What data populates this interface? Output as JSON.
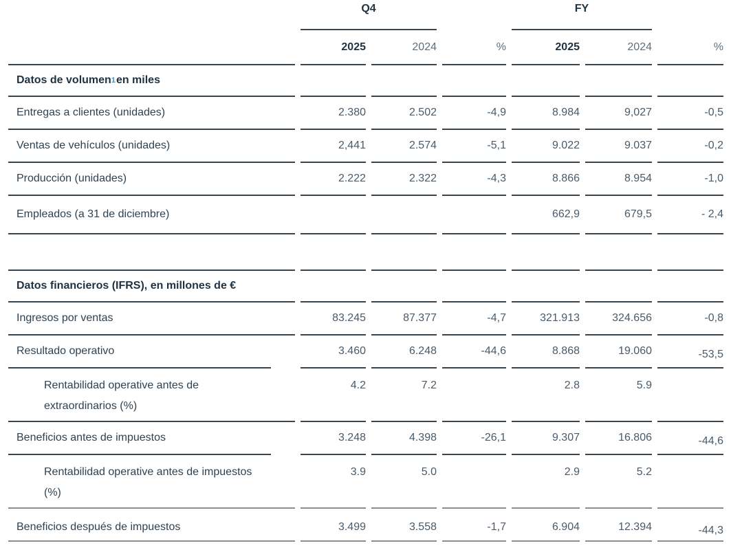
{
  "table": {
    "groups": [
      {
        "label": "Q4"
      },
      {
        "label": "FY"
      }
    ],
    "sub_headers": [
      "2025",
      "2024",
      "%",
      "2025",
      "2024",
      "%"
    ],
    "rows": [
      {
        "type": "section",
        "label": "Datos de volumen",
        "sup": "1",
        "label_after": " en miles",
        "values": [
          "",
          "",
          "",
          "",
          "",
          ""
        ]
      },
      {
        "type": "data",
        "label": "Entregas a clientes (unidades)",
        "values": [
          "2.380",
          "2.502",
          "-4,9",
          "8.984",
          "9,027",
          "-0,5"
        ]
      },
      {
        "type": "data",
        "label": "Ventas de vehículos (unidades)",
        "values": [
          "2,441",
          "2.574",
          "-5,1",
          "9.022",
          "9.037",
          "-0,2"
        ]
      },
      {
        "type": "data",
        "label": "Producción (unidades)",
        "values": [
          "2.222",
          "2.322",
          "-4,3",
          "8.866",
          "8.954",
          "-1,0"
        ]
      },
      {
        "type": "data",
        "label": "Empleados (a 31 de diciembre)",
        "values": [
          "",
          "",
          "",
          "662,9",
          "679,5",
          "- 2,4"
        ],
        "h": "empleados"
      },
      {
        "type": "spacer",
        "values": [
          "",
          "",
          "",
          "",
          "",
          ""
        ]
      },
      {
        "type": "section",
        "label": "Datos financieros (IFRS), en millones de €",
        "values": [
          "",
          "",
          "",
          "",
          "",
          ""
        ]
      },
      {
        "type": "data",
        "label": "Ingresos por ventas",
        "values": [
          "83.245",
          "87.377",
          "-4,7",
          "321.913",
          "324.656",
          "-0,8"
        ]
      },
      {
        "type": "data",
        "label": "Resultado operativo",
        "values": [
          "3.460",
          "6.248",
          "-44,6",
          "8.868",
          "19.060",
          "-53,5"
        ],
        "offset_last": true
      },
      {
        "type": "data",
        "label": "Rentabilidad operative antes de extraordinarios (%)",
        "values": [
          "4.2",
          "7.2",
          "",
          "2.8",
          "5.9",
          ""
        ],
        "indent": true,
        "tall": true
      },
      {
        "type": "data",
        "label": "Beneficios antes de impuestos",
        "values": [
          "3.248",
          "4.398",
          "-26,1",
          "9.307",
          "16.806",
          "-44,6"
        ],
        "offset_last": true
      },
      {
        "type": "data",
        "label": "Rentabilidad operative antes de impuestos (%)",
        "values": [
          "3.9",
          "5.0",
          "",
          "2.9",
          "5.2",
          ""
        ],
        "indent": true,
        "tall": true
      },
      {
        "type": "data",
        "label": "Beneficios después de impuestos",
        "values": [
          "3.499",
          "3.558",
          "-1,7",
          "6.904",
          "12.394",
          "-44,3"
        ],
        "offset_last": true,
        "light": true
      },
      {
        "type": "bottom",
        "values": [
          "",
          "",
          "",
          "",
          "",
          ""
        ]
      }
    ]
  },
  "colors": {
    "text_dark": "#1f3242",
    "text_label": "#2e4253",
    "text_number": "#485b6c",
    "text_muted": "#5d6f7d",
    "rule_dark": "#37434d",
    "rule_light": "#878f95",
    "superscript_blue": "#4390c6"
  }
}
